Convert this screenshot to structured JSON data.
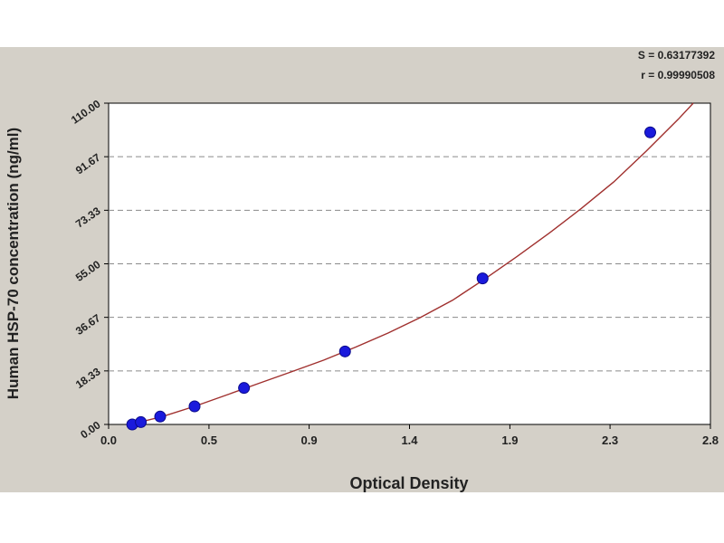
{
  "stats": {
    "s": "S = 0.63177392",
    "r": "r = 0.99990508"
  },
  "chart_data": {
    "type": "scatter",
    "title": "",
    "xlabel": "Optical Density",
    "ylabel": "Human HSP-70 concentration (ng/ml)",
    "xlim": [
      0.0,
      2.8
    ],
    "ylim": [
      0.0,
      110.0
    ],
    "xticks": [
      "0.0",
      "0.5",
      "0.9",
      "1.4",
      "1.9",
      "2.3",
      "2.8"
    ],
    "xtick_values": [
      0.0,
      0.467,
      0.933,
      1.4,
      1.867,
      2.333,
      2.8
    ],
    "yticks": [
      "0.00",
      "18.33",
      "36.67",
      "55.00",
      "73.33",
      "91.67",
      "110.00"
    ],
    "ytick_values": [
      0.0,
      18.33,
      36.67,
      55.0,
      73.33,
      91.67,
      110.0
    ],
    "grid": "horizontal dashed",
    "series": [
      {
        "kind": "points",
        "color": "#1a1adc",
        "x": [
          0.11,
          0.15,
          0.24,
          0.4,
          0.63,
          1.1,
          1.74,
          2.52
        ],
        "y": [
          0.0,
          0.8,
          2.7,
          6.2,
          12.5,
          25.0,
          50.0,
          100.0
        ]
      },
      {
        "kind": "fitted-curve",
        "color": "#a0302e",
        "x": [
          0.1,
          0.25,
          0.4,
          0.55,
          0.7,
          0.85,
          1.0,
          1.15,
          1.3,
          1.45,
          1.6,
          1.75,
          1.9,
          2.05,
          2.2,
          2.35,
          2.5,
          2.65,
          2.72
        ],
        "y": [
          0.0,
          2.7,
          6.2,
          10.1,
          14.1,
          18.0,
          22.0,
          26.5,
          31.3,
          36.6,
          42.5,
          49.8,
          57.5,
          65.5,
          74.0,
          83.0,
          93.5,
          104.5,
          110.0
        ]
      }
    ]
  }
}
